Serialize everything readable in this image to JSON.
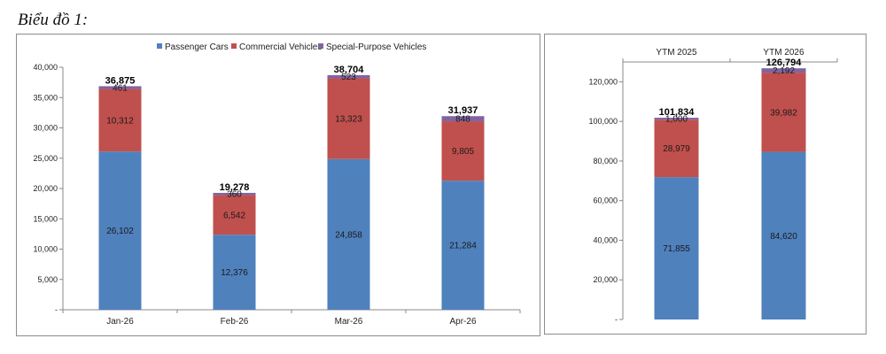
{
  "caption": "Biểu đồ 1:",
  "colors": {
    "passenger": "#4F81BD",
    "commercial": "#C0504D",
    "special": "#8064A2"
  },
  "chart_data": [
    {
      "type": "bar",
      "stacked": true,
      "categories": [
        "Jan-26",
        "Feb-26",
        "Mar-26",
        "Apr-26"
      ],
      "series": [
        {
          "name": "Passenger Cars",
          "values": [
            26102,
            12376,
            24858,
            21284
          ]
        },
        {
          "name": "Commercial Vehicles",
          "values": [
            10312,
            6542,
            13323,
            9805
          ]
        },
        {
          "name": "Special-Purpose Vehicles",
          "values": [
            461,
            360,
            523,
            848
          ]
        }
      ],
      "series_labels": [
        [
          "26,102",
          "12,376",
          "24,858",
          "21,284"
        ],
        [
          "10,312",
          "6,542",
          "13,323",
          "9,805"
        ],
        [
          "461",
          "360",
          "523",
          "848"
        ]
      ],
      "totals": [
        36875,
        19278,
        38704,
        31937
      ],
      "total_labels": [
        "36,875",
        "19,278",
        "38,704",
        "31,937"
      ],
      "ylim": [
        0,
        40000
      ],
      "yticks": [
        0,
        5000,
        10000,
        15000,
        20000,
        25000,
        30000,
        35000,
        40000
      ],
      "ytick_labels": [
        "-",
        "5,000",
        "10,000",
        "15,000",
        "20,000",
        "25,000",
        "30,000",
        "35,000",
        "40,000"
      ],
      "legend": "top",
      "grid": false
    },
    {
      "type": "bar",
      "stacked": true,
      "categories": [
        "YTM 2025",
        "YTM 2026"
      ],
      "series": [
        {
          "values": [
            71855,
            84620
          ]
        },
        {
          "values": [
            28979,
            39982
          ]
        },
        {
          "values": [
            1000,
            2192
          ]
        }
      ],
      "series_labels": [
        [
          "71,855",
          "84,620"
        ],
        [
          "28,979",
          "39,982"
        ],
        [
          "1,000",
          "2,192"
        ]
      ],
      "totals": [
        101834,
        126794
      ],
      "total_labels": [
        "101,834",
        "126,794"
      ],
      "ylim": [
        0,
        130000
      ],
      "yticks": [
        0,
        20000,
        40000,
        60000,
        80000,
        100000,
        120000
      ],
      "ytick_labels": [
        "-",
        "20,000",
        "40,000",
        "60,000",
        "80,000",
        "100,000",
        "120,000"
      ],
      "category_axis": "top",
      "grid": false
    }
  ]
}
